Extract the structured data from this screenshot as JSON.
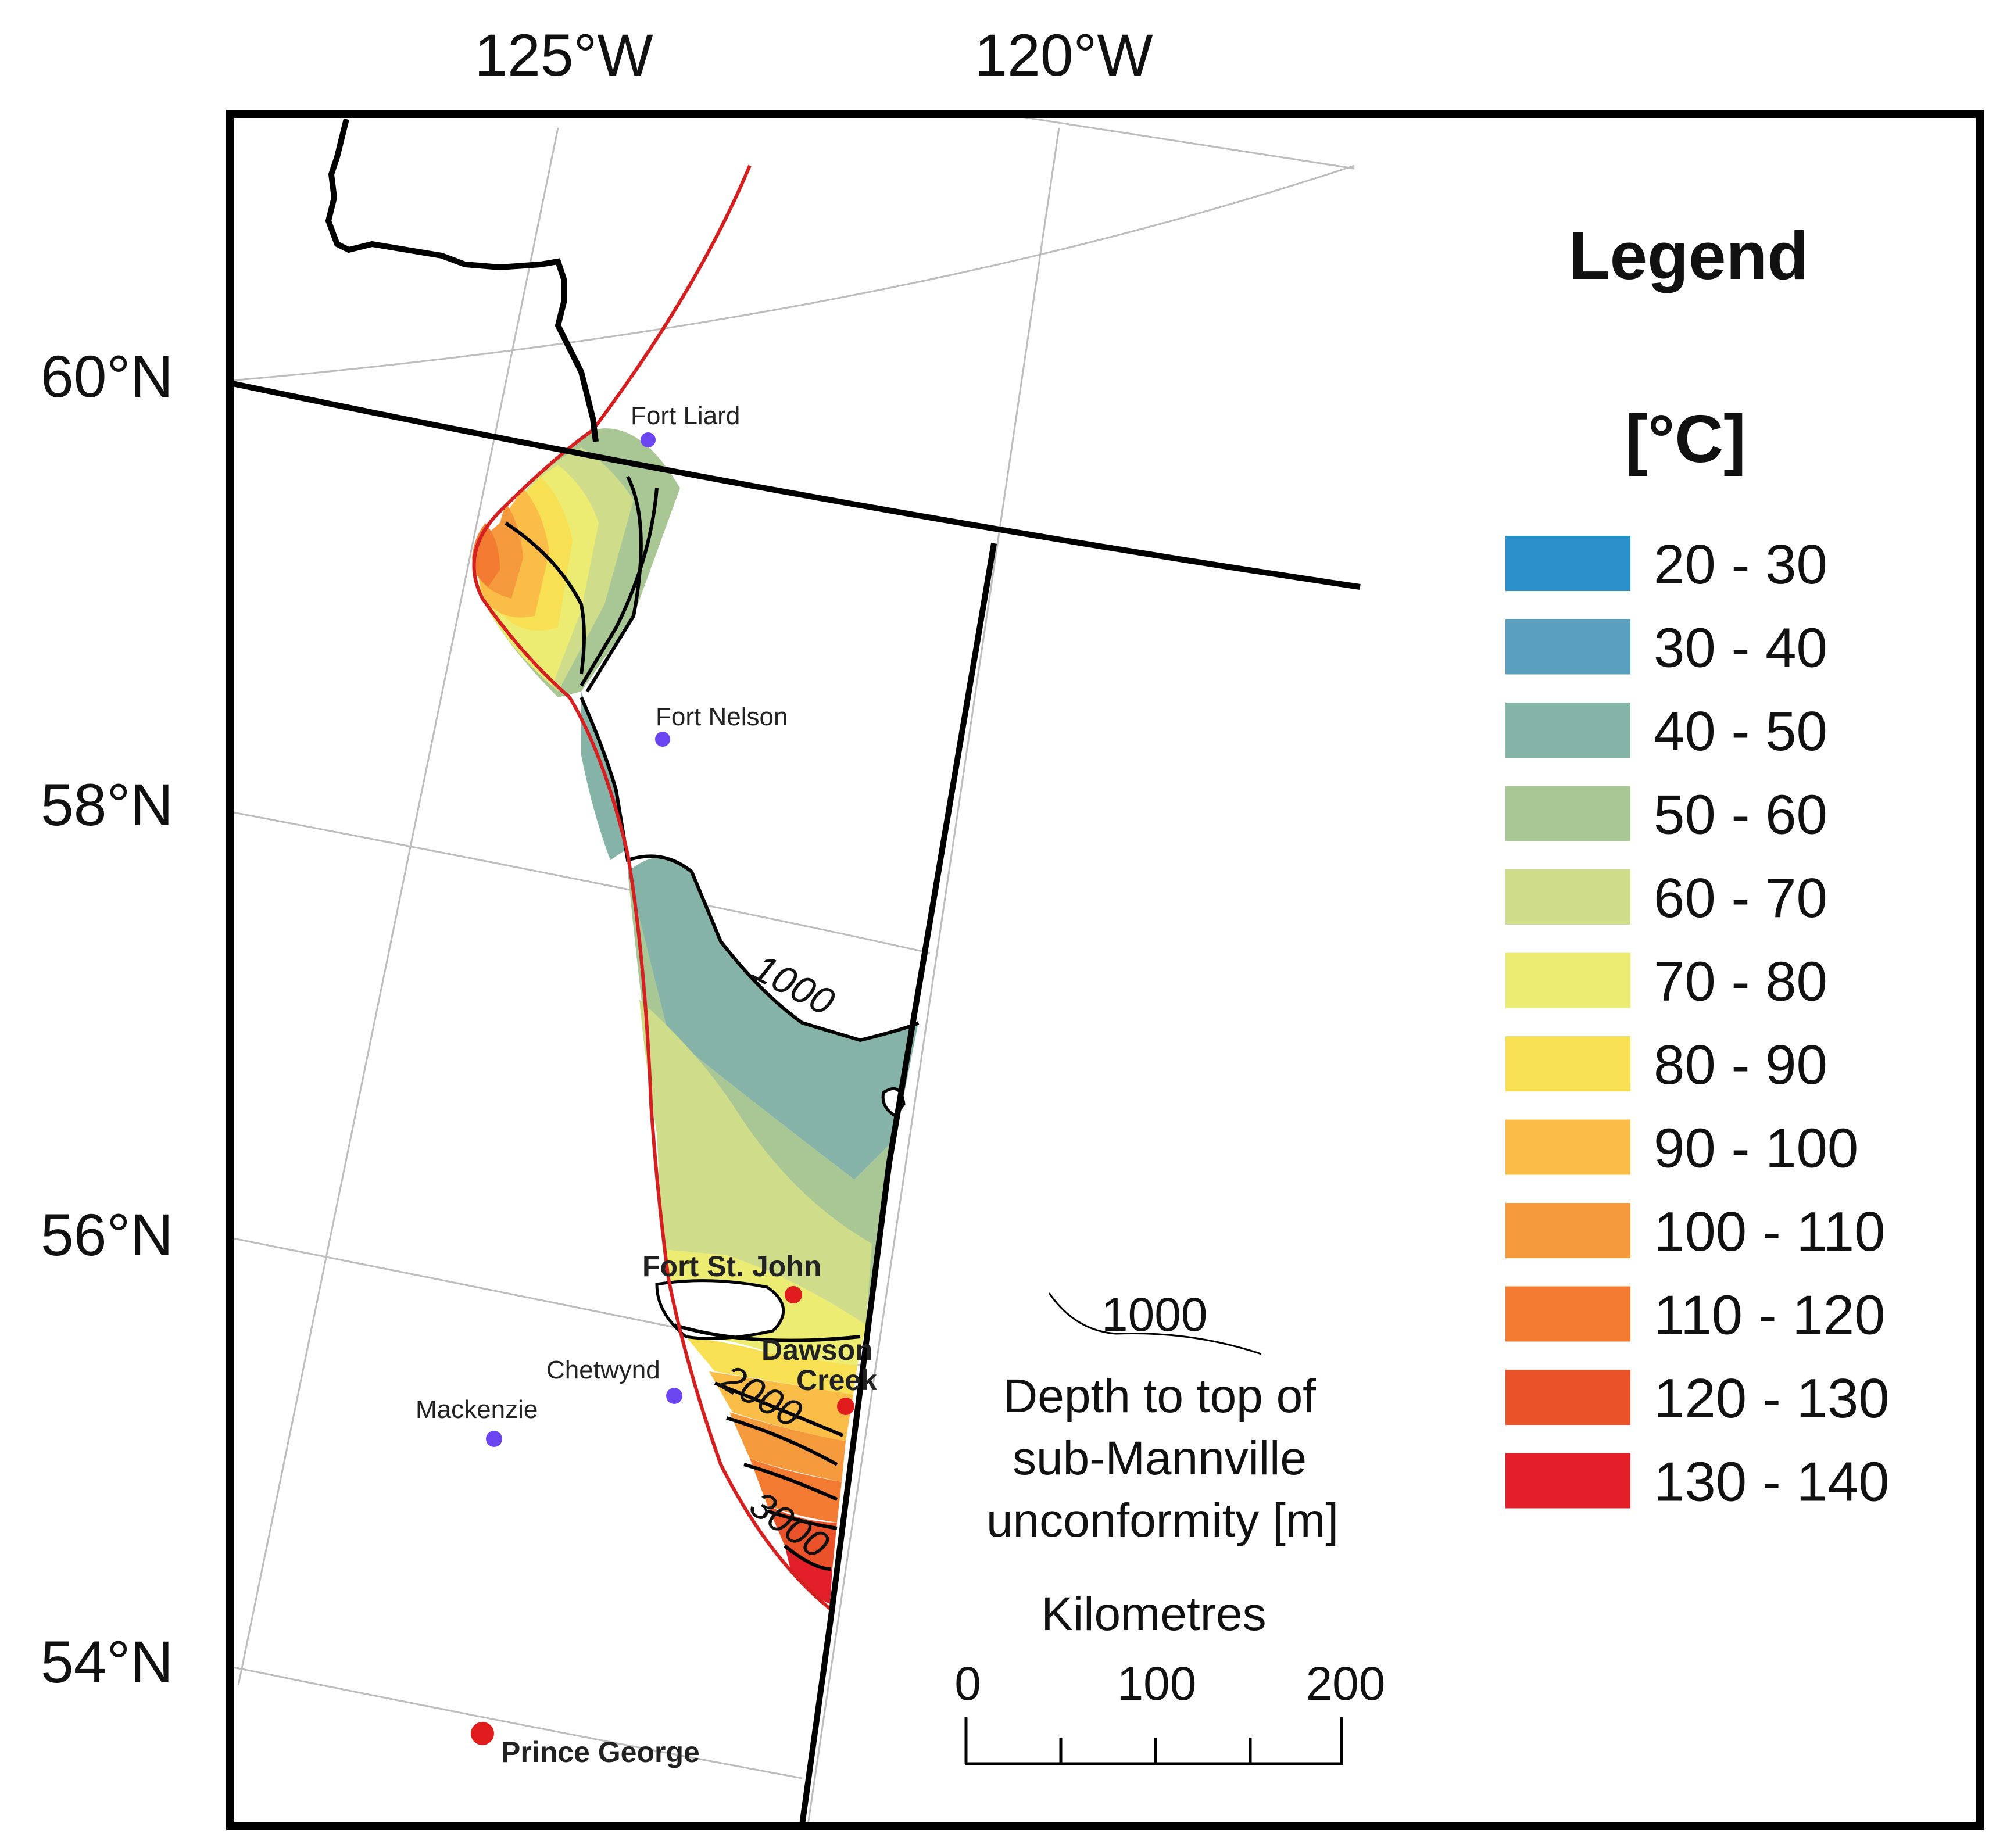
{
  "axes": {
    "lon_labels": [
      "125°W",
      "120°W"
    ],
    "lat_labels": [
      "60°N",
      "58°N",
      "56°N",
      "54°N"
    ]
  },
  "legend": {
    "title": "Legend",
    "unit": "[°C]",
    "classes": [
      {
        "label": "20 - 30",
        "color": "#2b8fc9"
      },
      {
        "label": "30 - 40",
        "color": "#5a9fbd"
      },
      {
        "label": "40 - 50",
        "color": "#86b3a8"
      },
      {
        "label": "50 - 60",
        "color": "#a8c795"
      },
      {
        "label": "60 - 70",
        "color": "#cfdc8a"
      },
      {
        "label": "70 - 80",
        "color": "#ecec72"
      },
      {
        "label": "80 - 90",
        "color": "#f8e054"
      },
      {
        "label": "90 - 100",
        "color": "#f9bd48"
      },
      {
        "label": "100 - 110",
        "color": "#f59a3c"
      },
      {
        "label": "110 - 120",
        "color": "#f27a31"
      },
      {
        "label": "120 - 130",
        "color": "#ea5329"
      },
      {
        "label": "130 - 140",
        "color": "#e3202a"
      }
    ]
  },
  "cities": {
    "fort_liard": "Fort Liard",
    "fort_nelson": "Fort Nelson",
    "fort_st_john": "Fort St. John",
    "dawson_creek_1": "Dawson",
    "dawson_creek_2": "Creek",
    "chetwynd": "Chetwynd",
    "mackenzie": "Mackenzie",
    "prince_george": "Prince George"
  },
  "contours": {
    "c1000": "1000",
    "c2000": "2000",
    "c3000": "3000"
  },
  "contour_note": {
    "sample_value": "1000",
    "line1": "Depth to top of",
    "line2": "sub-Mannville",
    "line3": "unconformity [m]"
  },
  "scale_bar": {
    "title": "Kilometres",
    "ticks": [
      "0",
      "100",
      "200"
    ]
  },
  "colors": {
    "frame": "#000000",
    "deformation_front": "#d42020",
    "boundary": "#000000",
    "graticule": "#bdbdbd",
    "city_minor": "#6b46f0",
    "city_major": "#e01c1c"
  }
}
